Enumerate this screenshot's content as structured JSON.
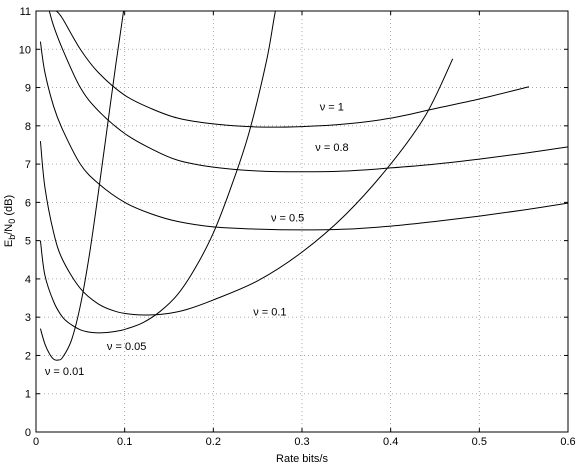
{
  "chart_data": {
    "type": "line",
    "title": "",
    "xlabel": "Rate bits/s",
    "ylabel_parts": {
      "e": "E",
      "b": "b",
      "slash_n": "/N",
      "zero": "0",
      "unit": " (dB)"
    },
    "xlim": [
      0,
      0.6
    ],
    "ylim": [
      0,
      11
    ],
    "xticks": [
      0,
      0.1,
      0.2,
      0.3,
      0.4,
      0.5,
      0.6
    ],
    "xtick_labels": [
      "0",
      "0.1",
      "0.2",
      "0.3",
      "0.4",
      "0.5",
      "0.6"
    ],
    "yticks": [
      0,
      1,
      2,
      3,
      4,
      5,
      6,
      7,
      8,
      9,
      10,
      11
    ],
    "ytick_labels": [
      "0",
      "1",
      "2",
      "3",
      "4",
      "5",
      "6",
      "7",
      "8",
      "9",
      "10",
      "11"
    ],
    "grid": true,
    "series": [
      {
        "name": "ν = 0.01",
        "label_at": [
          0.01,
          1.6
        ],
        "x": [
          0.005,
          0.01,
          0.015,
          0.02,
          0.025,
          0.03,
          0.04,
          0.05,
          0.06,
          0.07,
          0.08,
          0.09,
          0.1,
          0.11
        ],
        "y": [
          2.7,
          2.3,
          2.05,
          1.9,
          1.88,
          1.95,
          2.4,
          3.3,
          4.6,
          6.2,
          7.9,
          9.6,
          11.2,
          13.0
        ]
      },
      {
        "name": "ν = 0.05",
        "label_at": [
          0.08,
          2.25
        ],
        "x": [
          0.005,
          0.01,
          0.02,
          0.03,
          0.04,
          0.05,
          0.06,
          0.07,
          0.08,
          0.09,
          0.1,
          0.12,
          0.14,
          0.16,
          0.18,
          0.2,
          0.22,
          0.24,
          0.26,
          0.27,
          0.28
        ],
        "y": [
          5.0,
          4.1,
          3.4,
          3.0,
          2.8,
          2.67,
          2.61,
          2.59,
          2.6,
          2.63,
          2.68,
          2.85,
          3.15,
          3.6,
          4.3,
          5.2,
          6.4,
          7.8,
          9.7,
          11.0,
          12.0
        ]
      },
      {
        "name": "ν = 0.1",
        "label_at": [
          0.245,
          3.15
        ],
        "x": [
          0.005,
          0.01,
          0.02,
          0.03,
          0.05,
          0.07,
          0.09,
          0.11,
          0.13,
          0.15,
          0.17,
          0.2,
          0.25,
          0.3,
          0.35,
          0.4,
          0.44,
          0.47
        ],
        "y": [
          7.6,
          6.4,
          5.2,
          4.5,
          3.75,
          3.35,
          3.15,
          3.07,
          3.06,
          3.1,
          3.2,
          3.45,
          3.95,
          4.7,
          5.7,
          7.0,
          8.3,
          9.75
        ]
      },
      {
        "name": "ν = 0.5",
        "label_at": [
          0.265,
          5.6
        ],
        "x": [
          0.005,
          0.01,
          0.02,
          0.03,
          0.05,
          0.07,
          0.1,
          0.13,
          0.16,
          0.2,
          0.25,
          0.3,
          0.35,
          0.4,
          0.45,
          0.5,
          0.55,
          0.6
        ],
        "y": [
          10.2,
          9.4,
          8.5,
          7.9,
          7.0,
          6.5,
          6.0,
          5.7,
          5.5,
          5.36,
          5.3,
          5.28,
          5.3,
          5.38,
          5.5,
          5.64,
          5.8,
          5.98
        ]
      },
      {
        "name": "ν = 0.8",
        "label_at": [
          0.315,
          7.45
        ],
        "x": [
          0.015,
          0.02,
          0.03,
          0.05,
          0.07,
          0.1,
          0.13,
          0.16,
          0.2,
          0.25,
          0.3,
          0.35,
          0.4,
          0.45,
          0.5,
          0.55,
          0.6
        ],
        "y": [
          11.0,
          10.6,
          10.0,
          9.0,
          8.4,
          7.8,
          7.4,
          7.1,
          6.92,
          6.82,
          6.8,
          6.82,
          6.9,
          7.0,
          7.13,
          7.28,
          7.45
        ]
      },
      {
        "name": "ν = 1",
        "label_at": [
          0.32,
          8.5
        ],
        "x": [
          0.023,
          0.03,
          0.05,
          0.07,
          0.1,
          0.13,
          0.16,
          0.2,
          0.25,
          0.3,
          0.35,
          0.4,
          0.45,
          0.5,
          0.556
        ],
        "y": [
          11.0,
          10.8,
          10.0,
          9.4,
          8.8,
          8.45,
          8.2,
          8.05,
          7.97,
          7.98,
          8.05,
          8.2,
          8.45,
          8.7,
          9.02
        ]
      }
    ]
  }
}
